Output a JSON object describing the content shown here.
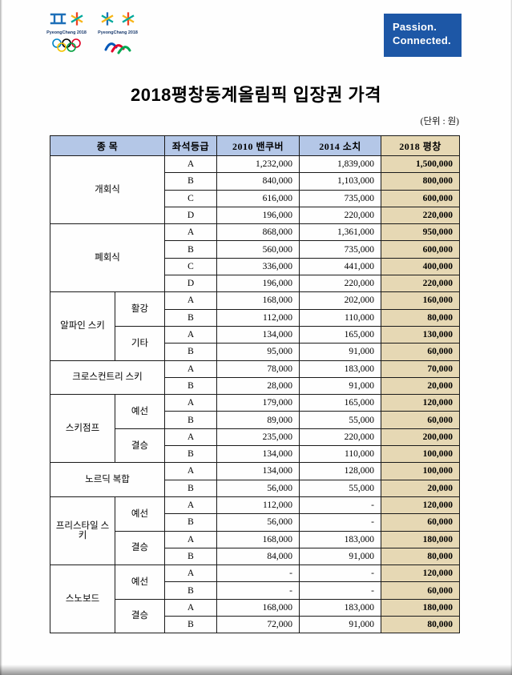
{
  "page": {
    "title": "2018평창동계올림픽 입장권 가격",
    "unit_note": "(단위 : 원)"
  },
  "branding": {
    "passion_line1": "Passion.",
    "passion_line2": "Connected.",
    "logo_text": "PyeongChang 2018",
    "passion_box_color": "#1d57a6",
    "header_blue": "#b4c7e7",
    "column_tan": "#e6d8b4"
  },
  "table": {
    "headers": [
      "종 목",
      "좌석등급",
      "2010 밴쿠버",
      "2014 소치",
      "2018 평창"
    ],
    "groups": [
      {
        "event": "개회식",
        "subgroups": [
          {
            "label": "",
            "rows": [
              {
                "seat": "A",
                "v2010": "1,232,000",
                "v2014": "1,839,000",
                "v2018": "1,500,000"
              },
              {
                "seat": "B",
                "v2010": "840,000",
                "v2014": "1,103,000",
                "v2018": "800,000"
              },
              {
                "seat": "C",
                "v2010": "616,000",
                "v2014": "735,000",
                "v2018": "600,000"
              },
              {
                "seat": "D",
                "v2010": "196,000",
                "v2014": "220,000",
                "v2018": "220,000"
              }
            ]
          }
        ]
      },
      {
        "event": "폐회식",
        "subgroups": [
          {
            "label": "",
            "rows": [
              {
                "seat": "A",
                "v2010": "868,000",
                "v2014": "1,361,000",
                "v2018": "950,000"
              },
              {
                "seat": "B",
                "v2010": "560,000",
                "v2014": "735,000",
                "v2018": "600,000"
              },
              {
                "seat": "C",
                "v2010": "336,000",
                "v2014": "441,000",
                "v2018": "400,000"
              },
              {
                "seat": "D",
                "v2010": "196,000",
                "v2014": "220,000",
                "v2018": "220,000"
              }
            ]
          }
        ]
      },
      {
        "event": "알파인 스키",
        "subgroups": [
          {
            "label": "활강",
            "rows": [
              {
                "seat": "A",
                "v2010": "168,000",
                "v2014": "202,000",
                "v2018": "160,000"
              },
              {
                "seat": "B",
                "v2010": "112,000",
                "v2014": "110,000",
                "v2018": "80,000"
              }
            ]
          },
          {
            "label": "기타",
            "rows": [
              {
                "seat": "A",
                "v2010": "134,000",
                "v2014": "165,000",
                "v2018": "130,000"
              },
              {
                "seat": "B",
                "v2010": "95,000",
                "v2014": "91,000",
                "v2018": "60,000"
              }
            ]
          }
        ]
      },
      {
        "event": "크로스컨트리 스키",
        "subgroups": [
          {
            "label": "",
            "rows": [
              {
                "seat": "A",
                "v2010": "78,000",
                "v2014": "183,000",
                "v2018": "70,000"
              },
              {
                "seat": "B",
                "v2010": "28,000",
                "v2014": "91,000",
                "v2018": "20,000"
              }
            ]
          }
        ]
      },
      {
        "event": "스키점프",
        "subgroups": [
          {
            "label": "예선",
            "rows": [
              {
                "seat": "A",
                "v2010": "179,000",
                "v2014": "165,000",
                "v2018": "120,000"
              },
              {
                "seat": "B",
                "v2010": "89,000",
                "v2014": "55,000",
                "v2018": "60,000"
              }
            ]
          },
          {
            "label": "결승",
            "rows": [
              {
                "seat": "A",
                "v2010": "235,000",
                "v2014": "220,000",
                "v2018": "200,000"
              },
              {
                "seat": "B",
                "v2010": "134,000",
                "v2014": "110,000",
                "v2018": "100,000"
              }
            ]
          }
        ]
      },
      {
        "event": "노르딕 복합",
        "subgroups": [
          {
            "label": "",
            "rows": [
              {
                "seat": "A",
                "v2010": "134,000",
                "v2014": "128,000",
                "v2018": "100,000"
              },
              {
                "seat": "B",
                "v2010": "56,000",
                "v2014": "55,000",
                "v2018": "20,000"
              }
            ]
          }
        ]
      },
      {
        "event": "프리스타일 스키",
        "subgroups": [
          {
            "label": "예선",
            "rows": [
              {
                "seat": "A",
                "v2010": "112,000",
                "v2014": "-",
                "v2018": "120,000"
              },
              {
                "seat": "B",
                "v2010": "56,000",
                "v2014": "-",
                "v2018": "60,000"
              }
            ]
          },
          {
            "label": "결승",
            "rows": [
              {
                "seat": "A",
                "v2010": "168,000",
                "v2014": "183,000",
                "v2018": "180,000"
              },
              {
                "seat": "B",
                "v2010": "84,000",
                "v2014": "91,000",
                "v2018": "80,000"
              }
            ]
          }
        ]
      },
      {
        "event": "스노보드",
        "subgroups": [
          {
            "label": "예선",
            "rows": [
              {
                "seat": "A",
                "v2010": "-",
                "v2014": "-",
                "v2018": "120,000"
              },
              {
                "seat": "B",
                "v2010": "-",
                "v2014": "-",
                "v2018": "60,000"
              }
            ]
          },
          {
            "label": "결승",
            "rows": [
              {
                "seat": "A",
                "v2010": "168,000",
                "v2014": "183,000",
                "v2018": "180,000"
              },
              {
                "seat": "B",
                "v2010": "72,000",
                "v2014": "91,000",
                "v2018": "80,000"
              }
            ]
          }
        ]
      }
    ]
  }
}
